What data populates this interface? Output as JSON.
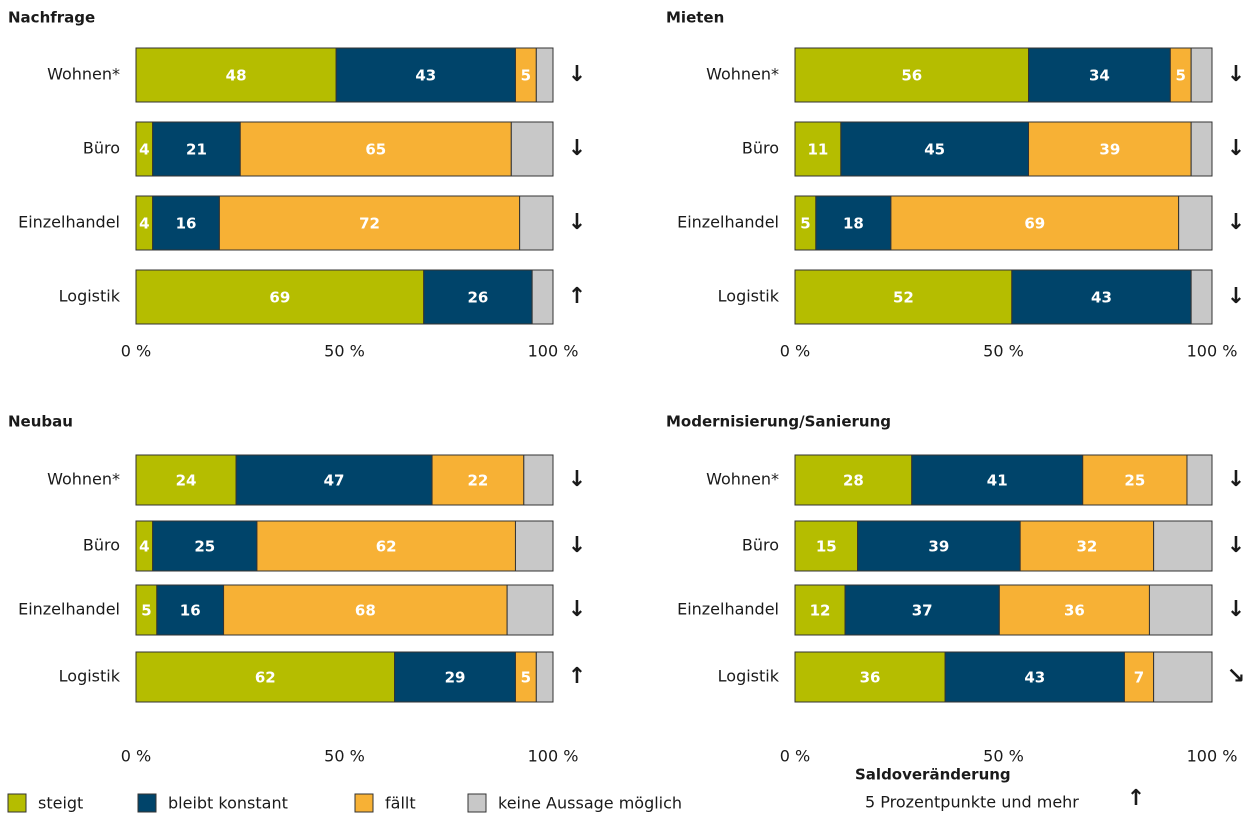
{
  "chart_data": [
    {
      "type": "bar",
      "orientation": "horizontal",
      "stacked": true,
      "title": "Nachfrage",
      "categories": [
        "Wohnen*",
        "Büro",
        "Einzelhandel",
        "Logistik"
      ],
      "series": [
        {
          "values": [
            48,
            4,
            4,
            69
          ]
        },
        {
          "values": [
            43,
            21,
            16,
            26
          ]
        },
        {
          "values": [
            5,
            65,
            72,
            null
          ]
        },
        {
          "values": [
            4,
            10,
            8,
            5
          ]
        }
      ],
      "trend": [
        "↓",
        "↓",
        "↓",
        "↑"
      ],
      "xlim": [
        0,
        100
      ],
      "xticks": [
        {
          "value": 0,
          "label": "0 %"
        },
        {
          "value": 50,
          "label": "50 %"
        },
        {
          "value": 100,
          "label": "100 %"
        }
      ]
    },
    {
      "type": "bar",
      "orientation": "horizontal",
      "stacked": true,
      "title": "Mieten",
      "categories": [
        "Wohnen*",
        "Büro",
        "Einzelhandel",
        "Logistik"
      ],
      "series": [
        {
          "values": [
            56,
            11,
            5,
            52
          ]
        },
        {
          "values": [
            34,
            45,
            18,
            43
          ]
        },
        {
          "values": [
            5,
            39,
            69,
            null
          ]
        },
        {
          "values": [
            5,
            5,
            8,
            5
          ]
        }
      ],
      "trend": [
        "↓",
        "↓",
        "↓",
        "↓"
      ],
      "xlim": [
        0,
        100
      ],
      "xticks": [
        {
          "value": 0,
          "label": "0 %"
        },
        {
          "value": 50,
          "label": "50 %"
        },
        {
          "value": 100,
          "label": "100 %"
        }
      ]
    },
    {
      "type": "bar",
      "orientation": "horizontal",
      "stacked": true,
      "title": "Neubau",
      "categories": [
        "Wohnen*",
        "Büro",
        "Einzelhandel",
        "Logistik"
      ],
      "series": [
        {
          "values": [
            24,
            4,
            5,
            62
          ]
        },
        {
          "values": [
            47,
            25,
            16,
            29
          ]
        },
        {
          "values": [
            22,
            62,
            68,
            5
          ]
        },
        {
          "values": [
            7,
            9,
            11,
            4
          ]
        }
      ],
      "trend": [
        "↓",
        "↓",
        "↓",
        "↑"
      ],
      "xlim": [
        0,
        100
      ],
      "xticks": [
        {
          "value": 0,
          "label": "0 %"
        },
        {
          "value": 50,
          "label": "50 %"
        },
        {
          "value": 100,
          "label": "100 %"
        }
      ]
    },
    {
      "type": "bar",
      "orientation": "horizontal",
      "stacked": true,
      "title": "Modernisierung/Sanierung",
      "categories": [
        "Wohnen*",
        "Büro",
        "Einzelhandel",
        "Logistik"
      ],
      "series": [
        {
          "values": [
            28,
            15,
            12,
            36
          ]
        },
        {
          "values": [
            41,
            39,
            37,
            43
          ]
        },
        {
          "values": [
            25,
            32,
            36,
            7
          ]
        },
        {
          "values": [
            6,
            14,
            15,
            14
          ]
        }
      ],
      "trend": [
        "↓",
        "↓",
        "↓",
        "↘"
      ],
      "xlim": [
        0,
        100
      ],
      "xticks": [
        {
          "value": 0,
          "label": "0 %"
        },
        {
          "value": 50,
          "label": "50 %"
        },
        {
          "value": 100,
          "label": "100 %"
        }
      ]
    }
  ],
  "legend": {
    "items": [
      {
        "name": "steigt",
        "color": "#b5bd00"
      },
      {
        "name": "bleibt konstant",
        "color": "#00446a"
      },
      {
        "name": "fällt",
        "color": "#f7b135"
      },
      {
        "name": "keine Aussage möglich",
        "color": "#c8c8c8"
      }
    ],
    "note_title": "Saldoveränderung",
    "note_text": "5 Prozentpunkte und mehr",
    "note_symbol": "↑"
  }
}
